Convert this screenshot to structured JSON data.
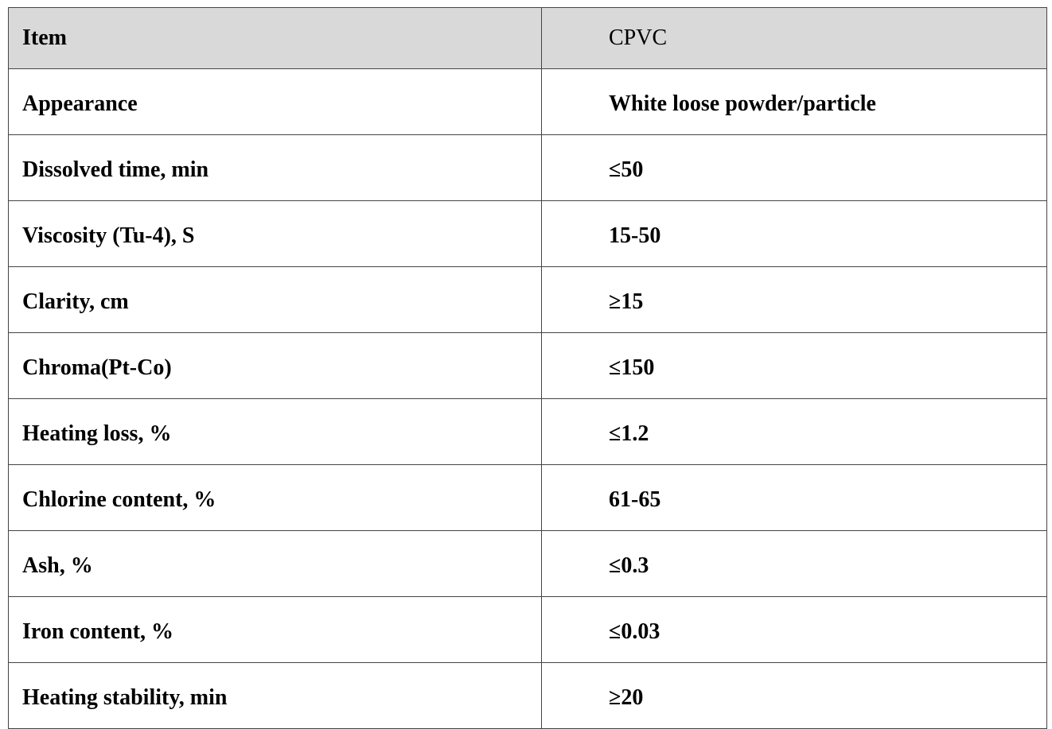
{
  "table": {
    "header": [
      "Item",
      "CPVC"
    ],
    "rows": [
      [
        "Appearance",
        "White loose powder/particle"
      ],
      [
        "Dissolved time, min",
        "≤50"
      ],
      [
        "Viscosity (Tu-4), S",
        "15-50"
      ],
      [
        "Clarity, cm",
        "≥15"
      ],
      [
        "Chroma(Pt-Co)",
        "≤150"
      ],
      [
        "Heating loss, %",
        "≤1.2"
      ],
      [
        "Chlorine content, %",
        "61-65"
      ],
      [
        "Ash, %",
        "≤0.3"
      ],
      [
        "Iron content, %",
        "≤0.03"
      ],
      [
        "Heating stability, min",
        "≥20"
      ]
    ]
  }
}
